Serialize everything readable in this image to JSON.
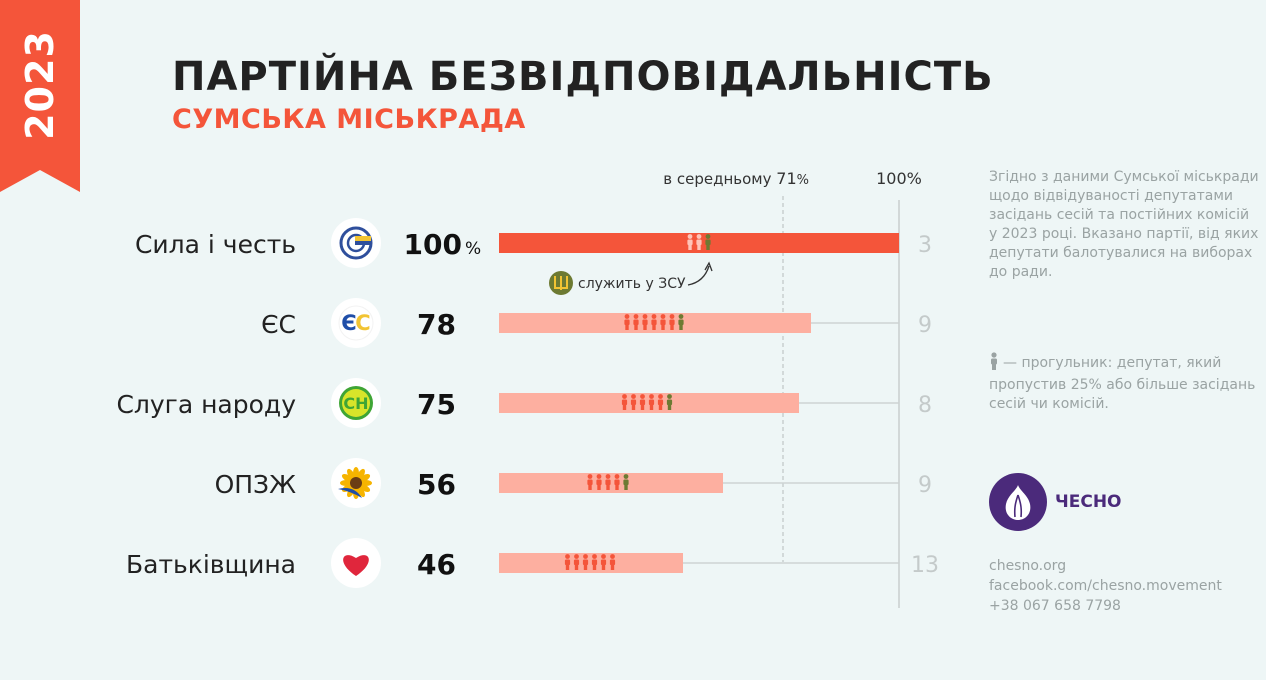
{
  "year": "2023",
  "title": "ПАРТІЙНА БЕЗВІДПОВІДАЛЬНІСТЬ",
  "subtitle": "СУМСЬКА МІСЬКРАДА",
  "colors": {
    "accent": "#f4553a",
    "bar_light": "#fdafa0",
    "bar_full": "#f4553a",
    "military": "#6d7a32",
    "gray_text": "#9aa3a3",
    "brand": "#4b2a7b"
  },
  "chart_data": {
    "type": "bar",
    "orientation": "horizontal",
    "unit": "%",
    "xlim": [
      0,
      100
    ],
    "average": 71,
    "average_label": "в середньому",
    "max_label": "100%",
    "categories": [
      "Сила і честь",
      "ЄС",
      "Слуга народу",
      "ОПЗЖ",
      "Батьківщина"
    ],
    "values": [
      100,
      78,
      75,
      56,
      46
    ],
    "value_labels": [
      "100",
      "78",
      "75",
      "56",
      "46"
    ],
    "total_deputies": [
      3,
      9,
      8,
      9,
      13
    ],
    "absentees": [
      3,
      7,
      6,
      5,
      6
    ],
    "absentees_serving": [
      1,
      1,
      1,
      1,
      0
    ],
    "party_logo_icons": [
      "sila-i-chest-logo-icon",
      "es-logo-icon",
      "sluha-narodu-logo-icon",
      "opzzh-logo-icon",
      "batkivshchyna-logo-icon"
    ],
    "annotation": "служить у ЗСУ"
  },
  "logos": {
    "es": "ЄС",
    "sh": "СН"
  },
  "note_intro": "Згідно з даними Сумської міськради щодо відвідуваності депутатами засідань сесій та постійних комісій у 2023 році. Вказано партії, від яких депутати балотувалися на виборах до ради.",
  "note_absentee": "— прогульник: депутат, який пропустив 25% або більше засідань сесій чи комісій.",
  "brand_name": "ЧЕСНО",
  "contacts": [
    "chesno.org",
    "facebook.com/chesno.movement",
    "+38 067 658 7798"
  ]
}
